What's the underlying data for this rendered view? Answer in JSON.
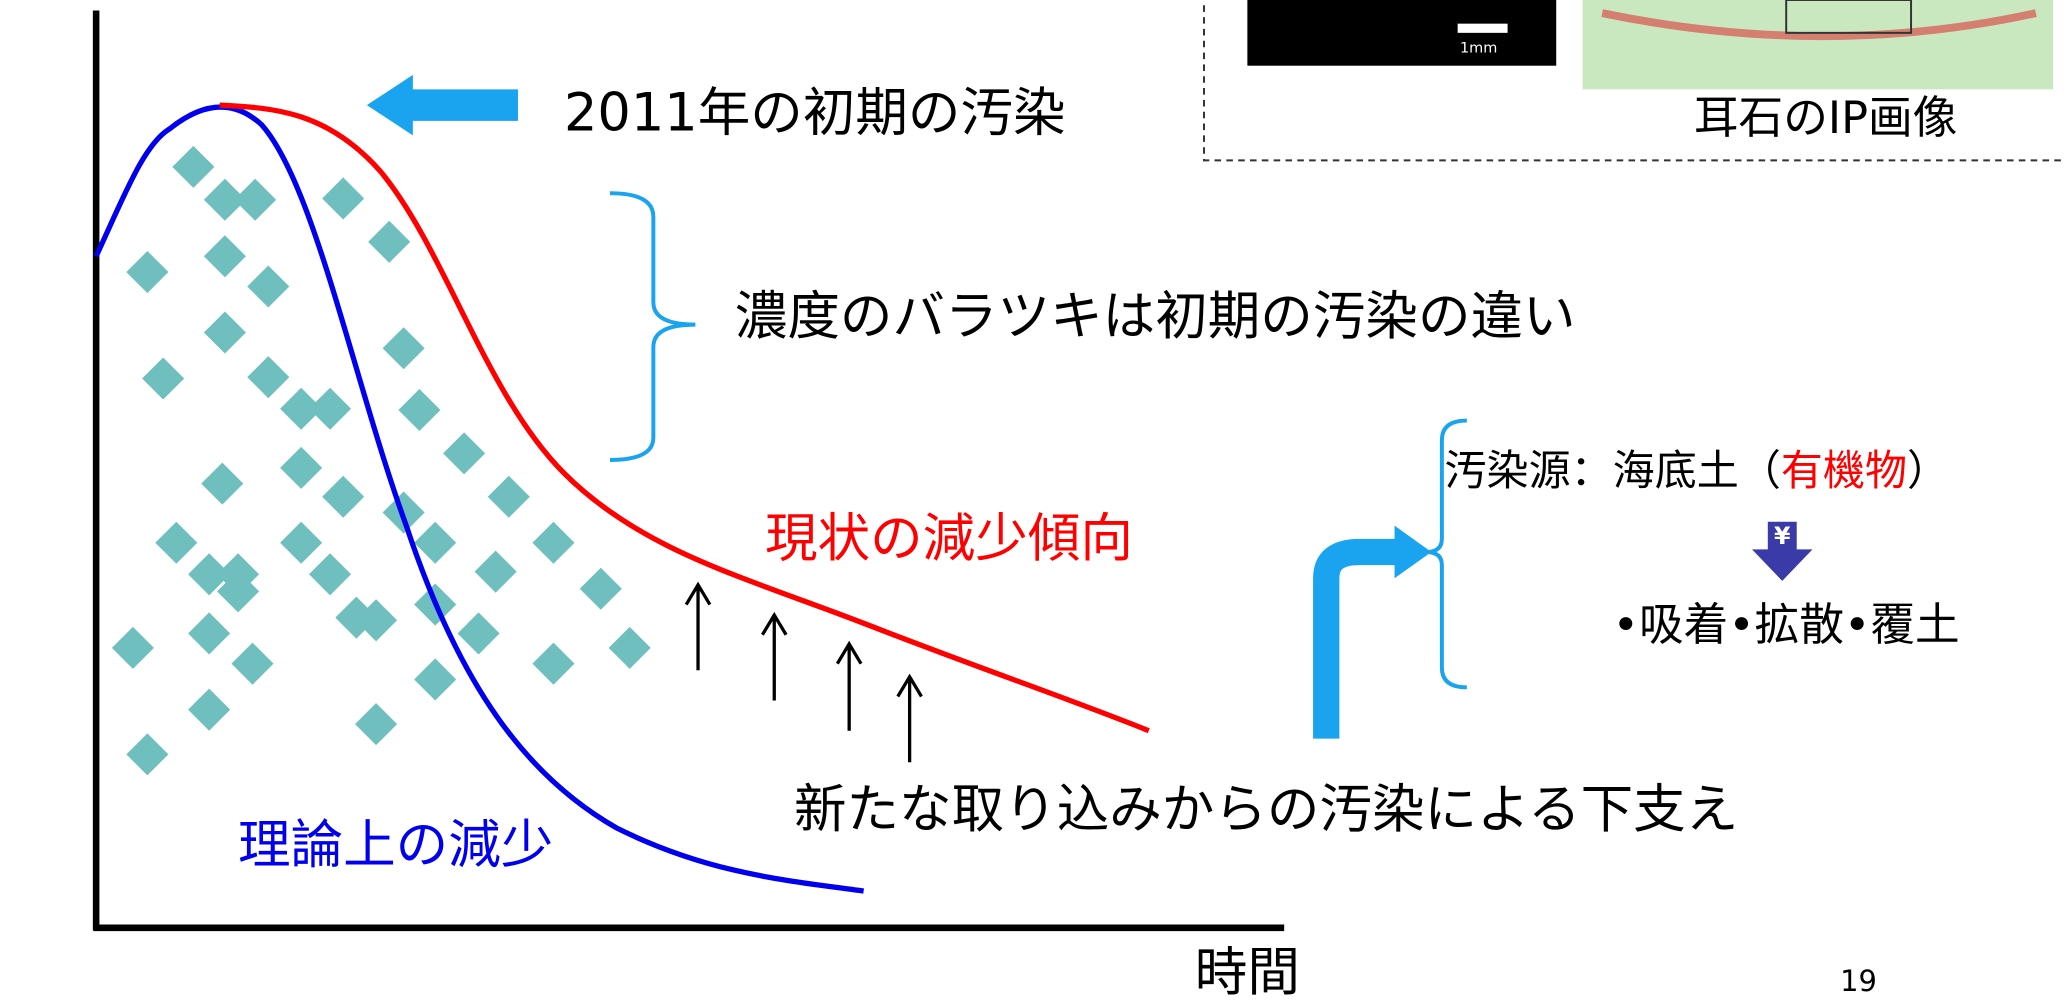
{
  "figure": {
    "initial_contamination": "2011年の初期の汚染",
    "variation_note": "濃度のバラツキは初期の汚染の違い",
    "source": {
      "prefix": "汚染源：海底土（",
      "highlight": "有機物",
      "suffix": "）"
    },
    "arrow_icon": "¥",
    "processes": "•吸着•拡散•覆土",
    "current_trend": "現状の減少傾向",
    "support_note": "新たな取り込みからの汚染による下支え",
    "theoretical": "理論上の減少",
    "x_axis_label": "時間",
    "scale_bar": "1mm",
    "image_caption": "耳石のIP画像"
  },
  "page_number": "19"
}
